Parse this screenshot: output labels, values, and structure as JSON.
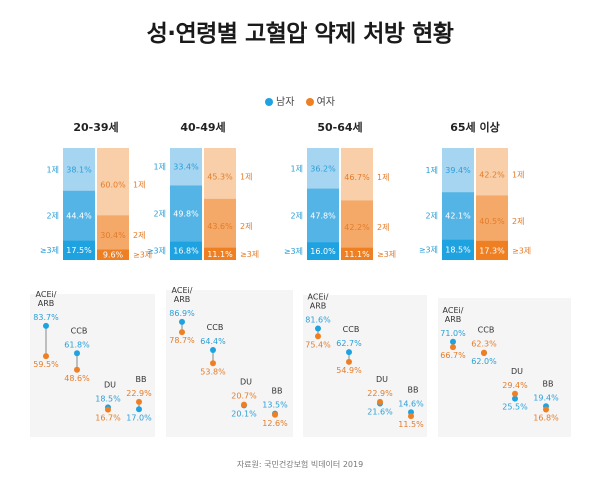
{
  "title": "성·연령별 고혈압 약제 처방 현황",
  "legend": {
    "male": "남자",
    "female": "여자"
  },
  "source": "자료원: 국민건강보험 빅데이터 2019",
  "colors": {
    "male_light": "#a6d5f2",
    "male_mid": "#55b4e6",
    "male_dark": "#1fa2e0",
    "female_light": "#f9cfa9",
    "female_mid": "#f5a968",
    "female_dark": "#ee8023",
    "male_text": "#2b9fd8",
    "female_text": "#e47c2b",
    "panel_bg": "#f5f5f5"
  },
  "chart_data": [
    {
      "type": "stacked-bar",
      "title": "20-39세",
      "categories": [
        "1제",
        "2제",
        "≥3제"
      ],
      "series": [
        {
          "name": "남자",
          "values": [
            38.1,
            44.4,
            17.5
          ],
          "labels": [
            "38.1%",
            "44.4%",
            "17.5%"
          ]
        },
        {
          "name": "여자",
          "values": [
            60.0,
            30.4,
            9.6
          ],
          "labels": [
            "60.0%",
            "30.4%",
            "9.6%"
          ]
        }
      ]
    },
    {
      "type": "stacked-bar",
      "title": "40-49세",
      "categories": [
        "1제",
        "2제",
        "≥3제"
      ],
      "series": [
        {
          "name": "남자",
          "values": [
            33.4,
            49.8,
            16.8
          ],
          "labels": [
            "33.4%",
            "49.8%",
            "16.8%"
          ]
        },
        {
          "name": "여자",
          "values": [
            45.3,
            43.6,
            11.1
          ],
          "labels": [
            "45.3%",
            "43.6%",
            "11.1%"
          ]
        }
      ]
    },
    {
      "type": "stacked-bar",
      "title": "50-64세",
      "categories": [
        "1제",
        "2제",
        "≥3제"
      ],
      "series": [
        {
          "name": "남자",
          "values": [
            36.2,
            47.8,
            16.0
          ],
          "labels": [
            "36.2%",
            "47.8%",
            "16.0%"
          ]
        },
        {
          "name": "여자",
          "values": [
            46.7,
            42.2,
            11.1
          ],
          "labels": [
            "46.7%",
            "42.2%",
            "11.1%"
          ]
        }
      ]
    },
    {
      "type": "stacked-bar",
      "title": "65세 이상",
      "categories": [
        "1제",
        "2제",
        "≥3제"
      ],
      "series": [
        {
          "name": "남자",
          "values": [
            39.4,
            42.1,
            18.5
          ],
          "labels": [
            "39.4%",
            "42.1%",
            "18.5%"
          ]
        },
        {
          "name": "여자",
          "values": [
            42.2,
            40.5,
            17.3
          ],
          "labels": [
            "42.2%",
            "40.5%",
            "17.3%"
          ]
        }
      ]
    },
    {
      "type": "dumbbell",
      "panel": "20-39세",
      "ylim": [
        0,
        100
      ],
      "categories": [
        {
          "name": "ACEi/ARB",
          "lines": [
            "ACEi/",
            "ARB"
          ],
          "male": 83.7,
          "female": 59.5,
          "male_label": "83.7%",
          "female_label": "59.5%"
        },
        {
          "name": "CCB",
          "lines": [
            "CCB"
          ],
          "male": 61.8,
          "female": 48.6,
          "male_label": "61.8%",
          "female_label": "48.6%"
        },
        {
          "name": "DU",
          "lines": [
            "DU"
          ],
          "male": 18.5,
          "female": 16.7,
          "male_label": "18.5%",
          "female_label": "16.7%"
        },
        {
          "name": "BB",
          "lines": [
            "BB"
          ],
          "male": 17.0,
          "female": 22.9,
          "male_label": "17.0%",
          "female_label": "22.9%"
        }
      ]
    },
    {
      "type": "dumbbell",
      "panel": "40-49세",
      "ylim": [
        0,
        100
      ],
      "categories": [
        {
          "name": "ACEi/ARB",
          "lines": [
            "ACEi/",
            "ARB"
          ],
          "male": 86.9,
          "female": 78.7,
          "male_label": "86.9%",
          "female_label": "78.7%"
        },
        {
          "name": "CCB",
          "lines": [
            "CCB"
          ],
          "male": 64.4,
          "female": 53.8,
          "male_label": "64.4%",
          "female_label": "53.8%"
        },
        {
          "name": "DU",
          "lines": [
            "DU"
          ],
          "male": 20.1,
          "female": 20.7,
          "male_label": "20.1%",
          "female_label": "20.7%"
        },
        {
          "name": "BB",
          "lines": [
            "BB"
          ],
          "male": 13.5,
          "female": 12.6,
          "male_label": "13.5%",
          "female_label": "12.6%"
        }
      ]
    },
    {
      "type": "dumbbell",
      "panel": "50-64세",
      "ylim": [
        0,
        100
      ],
      "categories": [
        {
          "name": "ACEi/ARB",
          "lines": [
            "ACEi/",
            "ARB"
          ],
          "male": 81.6,
          "female": 75.4,
          "male_label": "81.6%",
          "female_label": "75.4%"
        },
        {
          "name": "CCB",
          "lines": [
            "CCB"
          ],
          "male": 62.7,
          "female": 54.9,
          "male_label": "62.7%",
          "female_label": "54.9%"
        },
        {
          "name": "DU",
          "lines": [
            "DU"
          ],
          "male": 21.6,
          "female": 22.9,
          "male_label": "21.6%",
          "female_label": "22.9%"
        },
        {
          "name": "BB",
          "lines": [
            "BB"
          ],
          "male": 14.6,
          "female": 11.5,
          "male_label": "14.6%",
          "female_label": "11.5%"
        }
      ]
    },
    {
      "type": "dumbbell",
      "panel": "65세 이상",
      "ylim": [
        0,
        100
      ],
      "categories": [
        {
          "name": "ACEi/ARB",
          "lines": [
            "ACEi/",
            "ARB"
          ],
          "male": 71.0,
          "female": 66.7,
          "male_label": "71.0%",
          "female_label": "66.7%"
        },
        {
          "name": "CCB",
          "lines": [
            "CCB"
          ],
          "male": 62.0,
          "female": 62.3,
          "male_label": "62.0%",
          "female_label": "62.3%"
        },
        {
          "name": "DU",
          "lines": [
            "DU"
          ],
          "male": 25.5,
          "female": 29.4,
          "male_label": "25.5%",
          "female_label": "29.4%"
        },
        {
          "name": "BB",
          "lines": [
            "BB"
          ],
          "male": 19.4,
          "female": 16.8,
          "male_label": "19.4%",
          "female_label": "16.8%"
        }
      ]
    }
  ]
}
